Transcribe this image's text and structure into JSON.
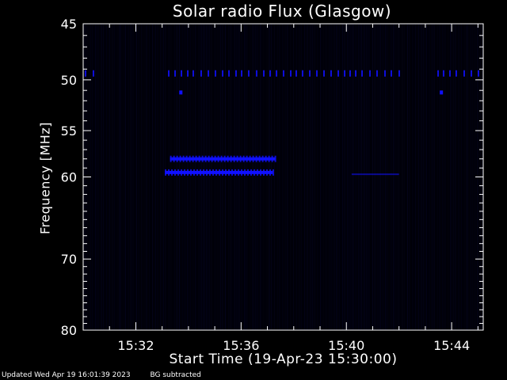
{
  "title": "Solar radio Flux (Glasgow)",
  "chart_data": {
    "type": "heatmap",
    "title": "Solar radio Flux (Glasgow)",
    "xlabel": "Start Time (19-Apr-23 15:30:00)",
    "ylabel": "Frequency [MHz]",
    "x_unit": "minutes after 15:30:00",
    "xlim": [
      0,
      15.2
    ],
    "ylim": [
      45,
      80
    ],
    "y_inverted": true,
    "y_scale": "log",
    "x_ticks": [
      {
        "value": 2,
        "label": "15:32"
      },
      {
        "value": 6,
        "label": "15:36"
      },
      {
        "value": 10,
        "label": "15:40"
      },
      {
        "value": 14,
        "label": "15:44"
      }
    ],
    "y_ticks": [
      {
        "value": 45,
        "label": "45"
      },
      {
        "value": 50,
        "label": "50"
      },
      {
        "value": 55,
        "label": "55"
      },
      {
        "value": 60,
        "label": "60"
      },
      {
        "value": 70,
        "label": "70"
      },
      {
        "value": 80,
        "label": "80"
      }
    ],
    "y_minor_ticks": [
      46,
      47,
      48,
      49,
      51,
      52,
      53,
      54,
      56,
      57,
      58,
      59,
      61,
      62,
      63,
      64,
      65,
      66,
      67,
      68,
      69,
      71,
      72,
      73,
      74,
      75,
      76,
      77,
      78,
      79
    ],
    "features": [
      {
        "name": "emission band",
        "frequency": 58.0,
        "x_start": 3.3,
        "x_end": 7.3,
        "intensity": "strong"
      },
      {
        "name": "emission band",
        "frequency": 59.5,
        "x_start": 3.1,
        "x_end": 7.2,
        "intensity": "strong"
      },
      {
        "name": "emission band",
        "frequency": 59.7,
        "x_start": 10.2,
        "x_end": 12.0,
        "intensity": "weak"
      },
      {
        "name": "interference line",
        "frequency": 49.4,
        "x_start": 0.0,
        "x_end": 15.2,
        "intensity": "moderate"
      },
      {
        "name": "spot",
        "frequency": 51.2,
        "x_start": 3.65,
        "x_end": 3.75,
        "intensity": "strong"
      },
      {
        "name": "spot",
        "frequency": 51.2,
        "x_start": 13.55,
        "x_end": 13.65,
        "intensity": "strong"
      }
    ],
    "colors": {
      "background": "#000000",
      "emission": "#1010ff",
      "frame": "#ffffff"
    }
  },
  "footer": {
    "updated": "Updated Wed Apr 19 16:01:39 2023",
    "note": "BG subtracted"
  }
}
